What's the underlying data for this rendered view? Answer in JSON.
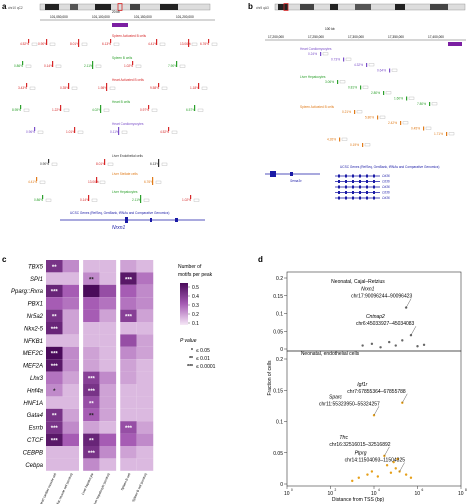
{
  "panels": {
    "a": {
      "label": "a",
      "locus": "chr10 qC2",
      "coords": [
        "101,050,000",
        "101,100,000",
        "101,150,000",
        "101,200,000"
      ],
      "scale": "20 kb",
      "track_groups": [
        {
          "name": "Spleen Activated B cells",
          "color": "#d62728"
        },
        {
          "name": "Spleen B cells",
          "color": "#2ca02c"
        },
        {
          "name": "Heart Activated B cells",
          "color": "#d62728"
        },
        {
          "name": "Heart B cells",
          "color": "#2ca02c"
        },
        {
          "name": "Heart Cardiomyocytes",
          "color": "#7b4fc9"
        },
        {
          "name": "Liver Endothelial cells",
          "color": "#333333"
        },
        {
          "name": "Liver Stellate cells",
          "color": "#e07b1a"
        },
        {
          "name": "Liver Hepatocytes",
          "color": "#2ca02c"
        }
      ],
      "pct_values": [
        "4.52%",
        "0.90%",
        "8.01%",
        "6.13%",
        "4.41%",
        "13.06%",
        "6.76%",
        "0.86%",
        "0.14%",
        "2.11%",
        "1.02%",
        "7.90%",
        "3.43%",
        "0.35%",
        "1.98%",
        "9.58%",
        "1.18%",
        "8.95%",
        "1.22%",
        "4.02%",
        "0.97%",
        "6.57%",
        "0.96%",
        "1.01%",
        "0.11%"
      ],
      "gene_track": "UCSC Genes (RefSeq, GenBank, tRNAs and Comparative Genomics)",
      "gene": "Nrxn1"
    },
    "b": {
      "label": "b",
      "locus": "chr5 qA3",
      "coords": [
        "17,200,000",
        "17,250,000",
        "17,300,000",
        "17,350,000",
        "17,400,000"
      ],
      "scale": "100 kb",
      "track_groups": [
        {
          "name": "Heart Cardiomyocytes",
          "color": "#7b4fc9"
        },
        {
          "name": "Liver Hepatocytes",
          "color": "#2ca02c"
        },
        {
          "name": "Spleen Activated B cells",
          "color": "#e07b1a"
        }
      ],
      "pct_values": [
        "0.24%",
        "0.73%",
        "4.32%",
        "0.64%",
        "3.06%",
        "0.81%",
        "2.80%",
        "1.60%",
        "7.80%",
        "0.21%",
        "5.80%",
        "2.42%",
        "0.45%",
        "1.71%",
        "4.26%",
        "0.19%",
        "3.73%",
        "6.01%",
        "5.53%",
        "1.05%",
        "0.78%"
      ],
      "gene_track": "UCSC Genes (RefSeq, GenBank, tRNAs and Comparative Genomics)",
      "genes": [
        "Sema3c",
        "Cd36",
        "Cd36",
        "Cd36",
        "Cd36",
        "Cd36"
      ]
    },
    "c": {
      "label": "c",
      "rows": [
        "TBX5",
        "SPI1",
        "Pparg::Rxra",
        "PBX1",
        "Nr5a2",
        "Nkx2-5",
        "NFKB1",
        "MEF2C",
        "MEF2A",
        "Lhx3",
        "Hnf4a",
        "HNF1A",
        "Gata4",
        "Esrrb",
        "CTCF",
        "CEBPB",
        "Cebpa"
      ],
      "cols": [
        "Heart cardiac muscle cell",
        "Heart cardiac muscle cell (control)",
        "Liver hepatocyte",
        "Liver hepatocyte (control)",
        "Spleen B cell",
        "Spleen B cell (control)"
      ],
      "values": [
        [
          0.45,
          0.2,
          0.1,
          0.1,
          0.15,
          0.1
        ],
        [
          0.1,
          0.1,
          0.2,
          0.1,
          0.55,
          0.25
        ],
        [
          0.5,
          0.3,
          0.6,
          0.35,
          0.3,
          0.2
        ],
        [
          0.3,
          0.25,
          0.3,
          0.25,
          0.25,
          0.2
        ],
        [
          0.45,
          0.15,
          0.3,
          0.15,
          0.4,
          0.15
        ],
        [
          0.5,
          0.15,
          0.1,
          0.1,
          0.1,
          0.1
        ],
        [
          0.1,
          0.1,
          0.1,
          0.1,
          0.35,
          0.15
        ],
        [
          0.6,
          0.2,
          0.15,
          0.1,
          0.2,
          0.15
        ],
        [
          0.55,
          0.2,
          0.15,
          0.1,
          0.15,
          0.1
        ],
        [
          0.25,
          0.15,
          0.4,
          0.2,
          0.15,
          0.1
        ],
        [
          0.2,
          0.1,
          0.45,
          0.15,
          0.1,
          0.1
        ],
        [
          0.1,
          0.1,
          0.35,
          0.15,
          0.1,
          0.1
        ],
        [
          0.45,
          0.15,
          0.3,
          0.15,
          0.1,
          0.1
        ],
        [
          0.45,
          0.2,
          0.15,
          0.1,
          0.35,
          0.15
        ],
        [
          0.55,
          0.3,
          0.5,
          0.3,
          0.3,
          0.2
        ],
        [
          0.1,
          0.1,
          0.45,
          0.2,
          0.15,
          0.1
        ],
        [
          0.1,
          0.1,
          0.2,
          0.1,
          0.1,
          0.1
        ]
      ],
      "stars": [
        [
          "**",
          "",
          "",
          "",
          "",
          ""
        ],
        [
          "",
          "",
          "**",
          "",
          "***",
          ""
        ],
        [
          "***",
          "",
          "",
          "",
          "",
          ""
        ],
        [
          "",
          "",
          "",
          "",
          "",
          ""
        ],
        [
          "**",
          "",
          "",
          "",
          "***",
          ""
        ],
        [
          "***",
          "",
          "",
          "",
          "",
          ""
        ],
        [
          "",
          "",
          "",
          "",
          "",
          ""
        ],
        [
          "***",
          "",
          "",
          "",
          "",
          ""
        ],
        [
          "***",
          "",
          "",
          "",
          "",
          ""
        ],
        [
          "",
          "",
          "***",
          "",
          "",
          ""
        ],
        [
          "*",
          "",
          "***",
          "",
          "",
          ""
        ],
        [
          "",
          "",
          "**",
          "",
          "",
          ""
        ],
        [
          "**",
          "",
          "**",
          "",
          "",
          ""
        ],
        [
          "***",
          "",
          "",
          "",
          "***",
          ""
        ],
        [
          "***",
          "",
          "**",
          "",
          "",
          ""
        ],
        [
          "",
          "",
          "***",
          "",
          "",
          ""
        ],
        [
          "",
          "",
          "",
          "",
          "",
          ""
        ]
      ],
      "legend_title": "Number of motifs per peak",
      "legend_ticks": [
        "0.5",
        "0.4",
        "0.3",
        "0.2",
        "0.1"
      ],
      "pvalue_title": "P value",
      "pvalue_items": [
        {
          "sym": "*",
          "text": "≤ 0.05"
        },
        {
          "sym": "**",
          "text": "≤ 0.01"
        },
        {
          "sym": "***",
          "text": "≤ 0.0001"
        }
      ]
    },
    "d": {
      "label": "d",
      "title": "Neonatal, Cajal–Retzius",
      "subtitle": "Neonatal, endothelial cells",
      "ylabel": "Fraction of cells",
      "xlabel": "Distance from TSS (bp)",
      "yticks_top": [
        "0.2",
        "0.15",
        "0.1",
        "0.05",
        "0"
      ],
      "yticks_bottom": [
        "0.2",
        "0.15",
        "0.1",
        "0.05",
        "0"
      ],
      "xticks": [
        "10",
        "10",
        "10",
        "10",
        "10"
      ],
      "xexp": [
        "0",
        "2",
        "4",
        "6",
        "8"
      ]
    }
  },
  "chart_data": {
    "type": "scatter",
    "title": "Neonatal, Cajal–Retzius",
    "xlabel": "Distance from TSS (bp)",
    "ylabel": "Fraction of cells",
    "xscale": "log",
    "xlim": [
      1,
      100000000
    ],
    "ylim": [
      0,
      0.2
    ],
    "series": [
      {
        "name": "Neonatal, Cajal–Retzius",
        "points": [
          {
            "x": 300000,
            "y": 0.12,
            "label": "Nrxn1",
            "detail": "chr17:90096244–90096423"
          },
          {
            "x": 500000,
            "y": 0.04,
            "label": "Cntnap2",
            "detail": "chr6:45033927–45034083"
          },
          {
            "x": 3000,
            "y": 0.01
          },
          {
            "x": 8000,
            "y": 0.015
          },
          {
            "x": 20000,
            "y": 0.005
          },
          {
            "x": 50000,
            "y": 0.02
          },
          {
            "x": 100000,
            "y": 0.01
          },
          {
            "x": 200000,
            "y": 0.025
          },
          {
            "x": 1000000,
            "y": 0.008
          },
          {
            "x": 2000000,
            "y": 0.012
          }
        ]
      },
      {
        "name": "Neonatal, endothelial cells",
        "points": [
          {
            "x": 10000,
            "y": 0.11,
            "label": "Sparc",
            "detail": "chr11:55323950–55324257"
          },
          {
            "x": 200000,
            "y": 0.13,
            "label": "Igf1r",
            "detail": "chr7:67855364–67855788"
          },
          {
            "x": 30000,
            "y": 0.045,
            "label": "Tfrc",
            "detail": "chr16:32516015–32516892"
          },
          {
            "x": 150000,
            "y": 0.02,
            "label": "Ptprg",
            "detail": "chr14:11504093–11504325"
          },
          {
            "x": 1000,
            "y": 0.005
          },
          {
            "x": 2000,
            "y": 0.01
          },
          {
            "x": 5000,
            "y": 0.015
          },
          {
            "x": 8000,
            "y": 0.02
          },
          {
            "x": 15000,
            "y": 0.012
          },
          {
            "x": 40000,
            "y": 0.03
          },
          {
            "x": 60000,
            "y": 0.018
          },
          {
            "x": 80000,
            "y": 0.035
          },
          {
            "x": 100000,
            "y": 0.025
          },
          {
            "x": 120000,
            "y": 0.04
          },
          {
            "x": 300000,
            "y": 0.015
          },
          {
            "x": 500000,
            "y": 0.01
          }
        ]
      }
    ]
  }
}
